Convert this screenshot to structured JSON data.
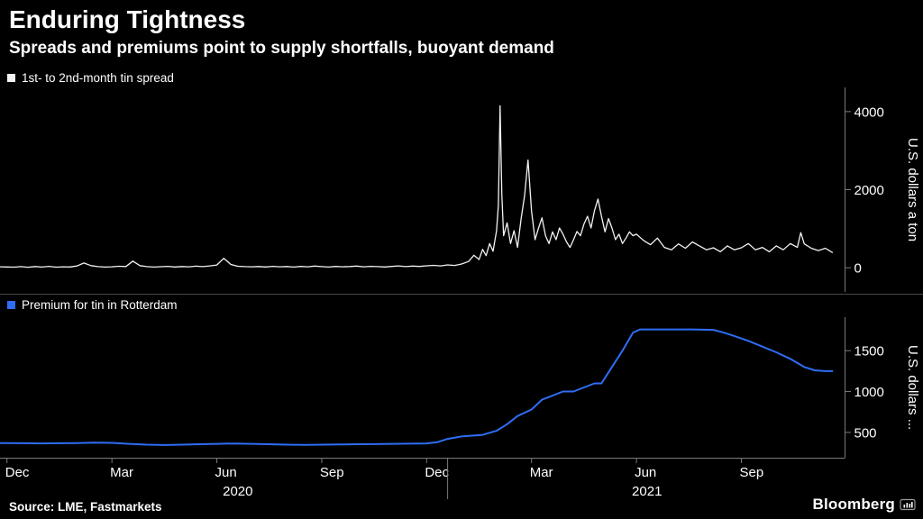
{
  "header": {
    "title": "Enduring Tightness",
    "subtitle": "Spreads and premiums point to supply shortfalls, buoyant demand"
  },
  "colors": {
    "background": "#000000",
    "text": "#ffffff",
    "axis": "#7a7a7a",
    "divider": "#4a4a4a",
    "spread_line": "#f2f2f2",
    "premium_line": "#2f6df4"
  },
  "x_axis": {
    "range_months": [
      -0.2,
      23.9
    ],
    "tick_labels": [
      "Dec",
      "Mar",
      "Jun",
      "Sep",
      "Dec",
      "Mar",
      "Jun",
      "Sep"
    ],
    "tick_positions_months": [
      0,
      3,
      6,
      9,
      12,
      15,
      18,
      21
    ],
    "year_separator_month": 12.6,
    "years": [
      {
        "label": "2020",
        "center_month": 6.6
      },
      {
        "label": "2021",
        "center_month": 18.3
      }
    ]
  },
  "chart_data": [
    {
      "type": "line",
      "name": "1st- to 2nd-month tin spread",
      "color": "#f2f2f2",
      "ylabel": "U.S. dollars a ton",
      "yticks": [
        0,
        2000,
        4000
      ],
      "ylim": [
        -620,
        4620
      ],
      "x": [
        -0.2,
        0,
        0.2,
        0.4,
        0.6,
        0.8,
        1,
        1.2,
        1.4,
        1.6,
        1.8,
        2,
        2.2,
        2.4,
        2.6,
        2.8,
        3,
        3.2,
        3.4,
        3.6,
        3.8,
        4,
        4.2,
        4.4,
        4.6,
        4.8,
        5,
        5.2,
        5.4,
        5.6,
        5.8,
        6,
        6.2,
        6.4,
        6.6,
        6.8,
        7,
        7.2,
        7.4,
        7.6,
        7.8,
        8,
        8.2,
        8.4,
        8.6,
        8.8,
        9,
        9.2,
        9.4,
        9.6,
        9.8,
        10,
        10.2,
        10.4,
        10.6,
        10.8,
        11,
        11.2,
        11.4,
        11.6,
        11.8,
        12,
        12.2,
        12.4,
        12.6,
        12.8,
        13,
        13.2,
        13.35,
        13.5,
        13.6,
        13.7,
        13.8,
        13.9,
        14,
        14.05,
        14.1,
        14.15,
        14.2,
        14.3,
        14.4,
        14.5,
        14.6,
        14.7,
        14.8,
        14.9,
        15,
        15.1,
        15.2,
        15.3,
        15.4,
        15.5,
        15.6,
        15.7,
        15.8,
        15.9,
        16,
        16.1,
        16.2,
        16.3,
        16.4,
        16.5,
        16.6,
        16.7,
        16.8,
        16.9,
        17,
        17.1,
        17.2,
        17.3,
        17.4,
        17.5,
        17.6,
        17.7,
        17.8,
        17.9,
        18,
        18.2,
        18.4,
        18.6,
        18.8,
        19,
        19.2,
        19.4,
        19.6,
        19.8,
        20,
        20.2,
        20.4,
        20.6,
        20.8,
        21,
        21.2,
        21.4,
        21.6,
        21.8,
        22,
        22.2,
        22.4,
        22.6,
        22.7,
        22.8,
        23,
        23.2,
        23.4,
        23.6
      ],
      "y": [
        25,
        20,
        15,
        28,
        12,
        30,
        18,
        35,
        15,
        25,
        20,
        45,
        120,
        55,
        28,
        18,
        25,
        38,
        30,
        170,
        55,
        28,
        18,
        26,
        36,
        20,
        30,
        24,
        40,
        28,
        48,
        70,
        240,
        85,
        38,
        28,
        24,
        32,
        20,
        36,
        24,
        30,
        18,
        34,
        24,
        42,
        28,
        18,
        34,
        24,
        30,
        42,
        24,
        36,
        28,
        20,
        34,
        46,
        28,
        42,
        34,
        50,
        62,
        46,
        72,
        58,
        95,
        160,
        320,
        210,
        470,
        310,
        620,
        420,
        950,
        1600,
        4150,
        1900,
        820,
        1150,
        620,
        950,
        520,
        1250,
        1850,
        2760,
        1450,
        720,
        1020,
        1280,
        820,
        620,
        920,
        720,
        1020,
        860,
        660,
        520,
        720,
        930,
        820,
        1120,
        1320,
        1020,
        1460,
        1760,
        1320,
        920,
        1260,
        1020,
        720,
        860,
        620,
        760,
        920,
        820,
        860,
        700,
        590,
        760,
        520,
        460,
        610,
        500,
        660,
        560,
        460,
        510,
        410,
        560,
        460,
        510,
        620,
        460,
        520,
        410,
        560,
        460,
        620,
        520,
        900,
        610,
        500,
        440,
        500,
        390
      ]
    },
    {
      "type": "line",
      "name": "Premium for tin in Rotterdam",
      "color": "#2f6df4",
      "ylabel": "U.S. dollars ...",
      "yticks": [
        500,
        1000,
        1500
      ],
      "ylim": [
        190,
        1910
      ],
      "x": [
        -0.2,
        0,
        0.5,
        1,
        1.5,
        2,
        2.5,
        3,
        3.5,
        4,
        4.5,
        5,
        5.5,
        6,
        6.5,
        7,
        7.5,
        8,
        8.5,
        9,
        9.5,
        10,
        10.5,
        11,
        11.5,
        12,
        12.3,
        12.6,
        13,
        13.3,
        13.6,
        14,
        14.3,
        14.6,
        15,
        15.3,
        15.6,
        15.9,
        16.2,
        16.5,
        16.8,
        17,
        17.3,
        17.6,
        17.9,
        18.1,
        18.4,
        19,
        19.6,
        20.2,
        20.5,
        20.8,
        21.2,
        21.6,
        22,
        22.4,
        22.8,
        23.1,
        23.4,
        23.6
      ],
      "y": [
        370,
        370,
        368,
        365,
        367,
        370,
        374,
        372,
        360,
        350,
        346,
        350,
        355,
        360,
        364,
        360,
        355,
        350,
        348,
        350,
        352,
        355,
        357,
        360,
        362,
        365,
        380,
        420,
        450,
        460,
        470,
        520,
        600,
        700,
        780,
        900,
        950,
        1000,
        1000,
        1050,
        1100,
        1100,
        1300,
        1500,
        1720,
        1760,
        1760,
        1760,
        1760,
        1755,
        1720,
        1680,
        1620,
        1550,
        1480,
        1400,
        1300,
        1260,
        1250,
        1250
      ]
    }
  ],
  "footer": {
    "source": "Source: LME, Fastmarkets",
    "brand": "Bloomberg"
  }
}
